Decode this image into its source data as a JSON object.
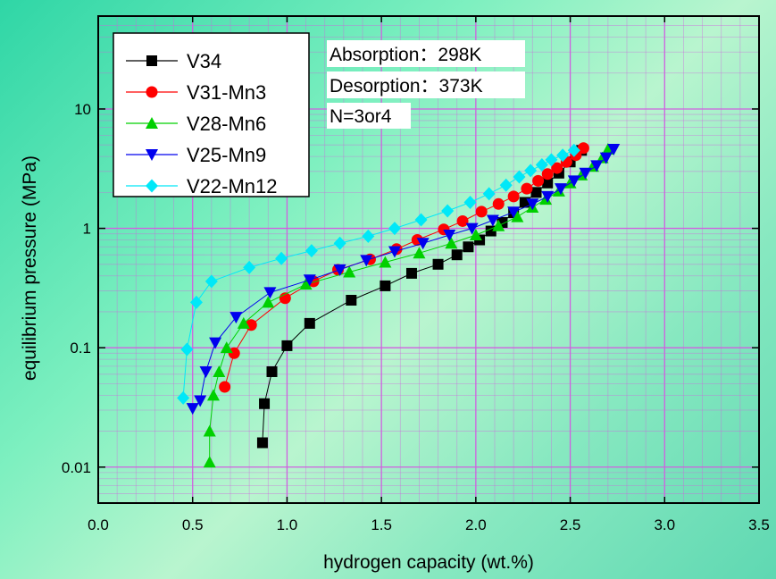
{
  "chart_data": {
    "type": "scatter",
    "xlabel": "hydrogen capacity (wt.%)",
    "ylabel": "equilibrium pressure (MPa)",
    "xlim": [
      0.0,
      3.5
    ],
    "ylim": [
      0.005,
      60
    ],
    "y_scale": "log",
    "x_ticks": [
      "0.0",
      "0.5",
      "1.0",
      "1.5",
      "2.0",
      "2.5",
      "3.0",
      "3.5"
    ],
    "y_ticks": [
      "0.01",
      "0.1",
      "1",
      "10"
    ],
    "grid": true,
    "legend_position": "top-left",
    "annotations": [
      "Absorption：298K",
      "Desorption：373K",
      "N=3or4"
    ],
    "series": [
      {
        "name": "V34",
        "color": "#000000",
        "marker": "square",
        "x": [
          0.87,
          0.88,
          0.92,
          1.0,
          1.12,
          1.34,
          1.52,
          1.66,
          1.8,
          1.9,
          1.96,
          2.02,
          2.08,
          2.14,
          2.2,
          2.26,
          2.32,
          2.38,
          2.44,
          2.5,
          2.56
        ],
        "y": [
          0.016,
          0.034,
          0.063,
          0.104,
          0.16,
          0.25,
          0.33,
          0.42,
          0.5,
          0.6,
          0.7,
          0.8,
          0.95,
          1.12,
          1.35,
          1.65,
          2.0,
          2.4,
          2.9,
          3.6,
          4.5
        ]
      },
      {
        "name": "V31-Mn3",
        "color": "#ff0000",
        "marker": "circle",
        "x": [
          0.67,
          0.72,
          0.81,
          0.99,
          1.14,
          1.27,
          1.44,
          1.58,
          1.69,
          1.83,
          1.93,
          2.03,
          2.12,
          2.2,
          2.27,
          2.33,
          2.38,
          2.43,
          2.48,
          2.53,
          2.57
        ],
        "y": [
          0.047,
          0.09,
          0.155,
          0.26,
          0.36,
          0.45,
          0.55,
          0.67,
          0.8,
          0.98,
          1.15,
          1.38,
          1.6,
          1.85,
          2.15,
          2.5,
          2.85,
          3.2,
          3.6,
          4.1,
          4.7
        ]
      },
      {
        "name": "V28-Mn6",
        "color": "#00d000",
        "marker": "triangle-up",
        "x": [
          0.59,
          0.59,
          0.61,
          0.64,
          0.68,
          0.77,
          0.9,
          1.1,
          1.33,
          1.52,
          1.7,
          1.87,
          2.0,
          2.12,
          2.22,
          2.3,
          2.37,
          2.44,
          2.5,
          2.56,
          2.62,
          2.67,
          2.7
        ],
        "y": [
          0.011,
          0.02,
          0.04,
          0.063,
          0.1,
          0.16,
          0.24,
          0.34,
          0.43,
          0.52,
          0.62,
          0.75,
          0.88,
          1.05,
          1.25,
          1.5,
          1.75,
          2.05,
          2.4,
          2.8,
          3.3,
          3.9,
          4.6
        ]
      },
      {
        "name": "V25-Mn9",
        "color": "#0000ee",
        "marker": "triangle-down",
        "x": [
          0.5,
          0.54,
          0.57,
          0.62,
          0.73,
          0.91,
          1.12,
          1.28,
          1.42,
          1.57,
          1.72,
          1.86,
          1.98,
          2.09,
          2.2,
          2.3,
          2.38,
          2.45,
          2.52,
          2.58,
          2.64,
          2.69,
          2.73
        ],
        "y": [
          0.031,
          0.036,
          0.063,
          0.11,
          0.18,
          0.29,
          0.37,
          0.45,
          0.54,
          0.64,
          0.75,
          0.88,
          1.0,
          1.17,
          1.37,
          1.6,
          1.85,
          2.15,
          2.5,
          2.9,
          3.35,
          3.9,
          4.6
        ]
      },
      {
        "name": "V22-Mn12",
        "color": "#00e8f8",
        "marker": "diamond",
        "x": [
          0.45,
          0.47,
          0.52,
          0.6,
          0.8,
          0.97,
          1.13,
          1.28,
          1.43,
          1.57,
          1.71,
          1.85,
          1.97,
          2.07,
          2.16,
          2.23,
          2.29,
          2.35,
          2.4,
          2.46,
          2.52
        ],
        "y": [
          0.038,
          0.097,
          0.24,
          0.36,
          0.47,
          0.56,
          0.65,
          0.75,
          0.86,
          1.0,
          1.18,
          1.4,
          1.65,
          1.95,
          2.3,
          2.7,
          3.05,
          3.4,
          3.75,
          4.1,
          4.5
        ]
      }
    ]
  }
}
